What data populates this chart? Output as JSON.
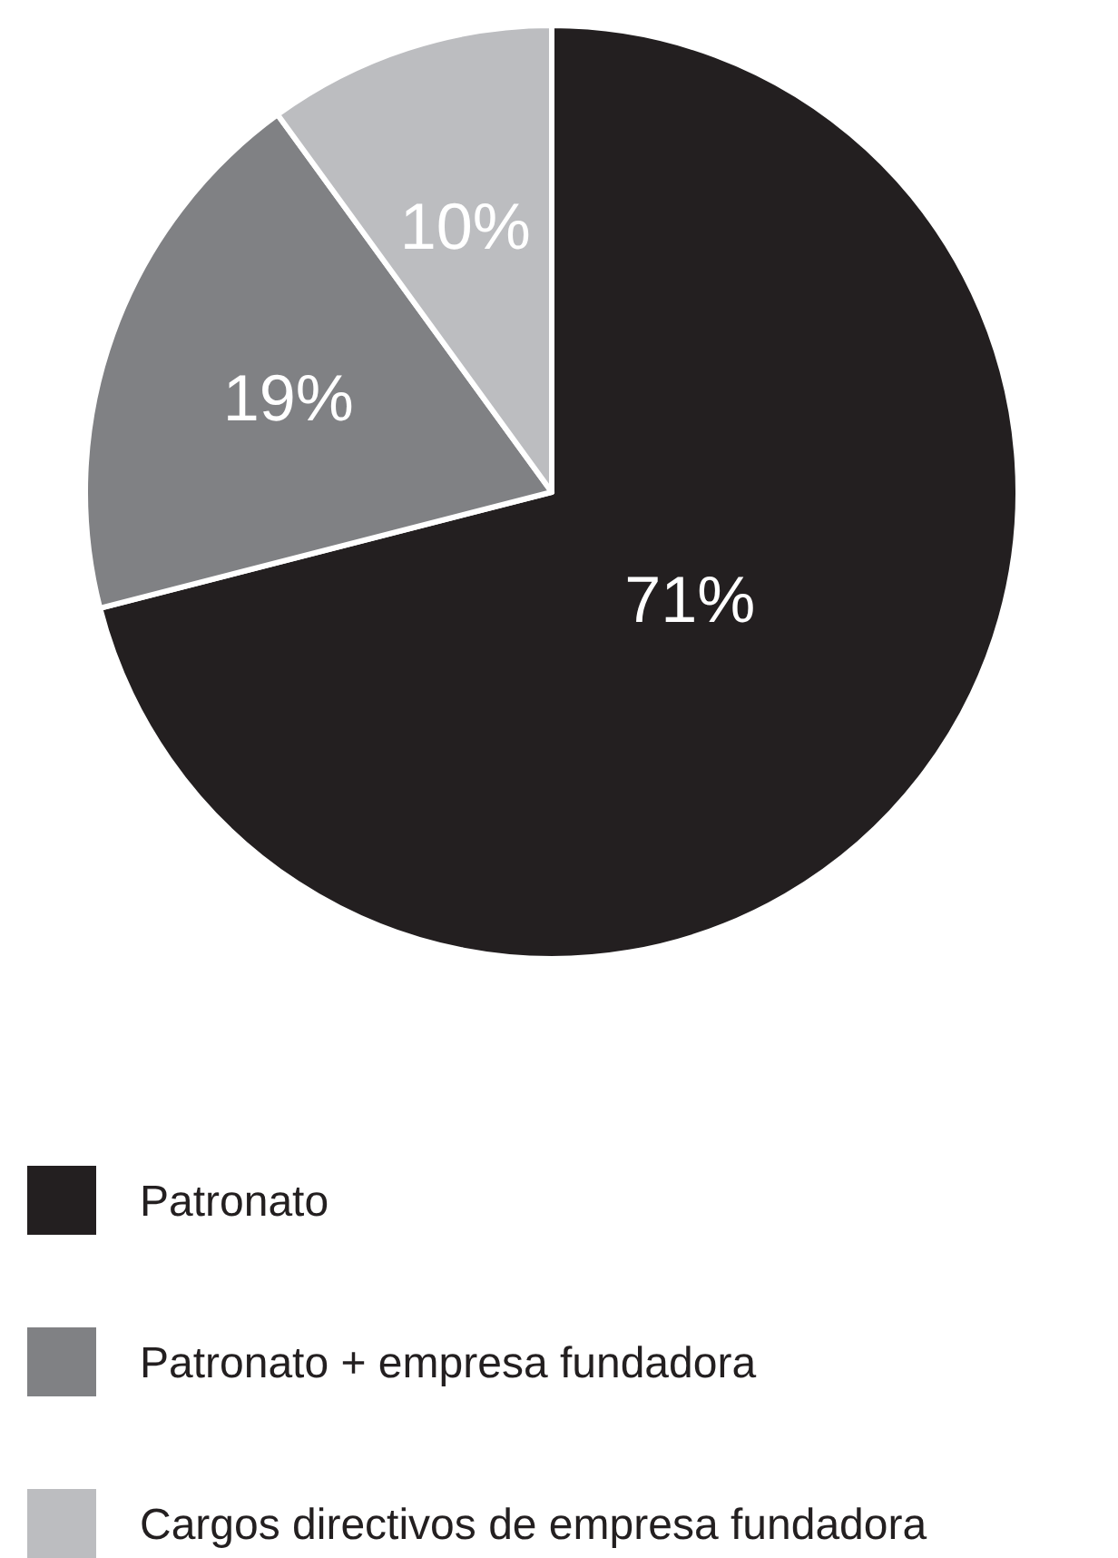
{
  "chart_data": {
    "type": "pie",
    "categories": [
      "Patronato",
      "Patronato + empresa fundadora",
      "Cargos directivos de empresa fundadora"
    ],
    "values": [
      71,
      19,
      10
    ],
    "colors": [
      "#231f20",
      "#808184",
      "#bcbdc0"
    ],
    "value_labels": [
      "71%",
      "19%",
      "10%"
    ],
    "legend": "bottom"
  }
}
